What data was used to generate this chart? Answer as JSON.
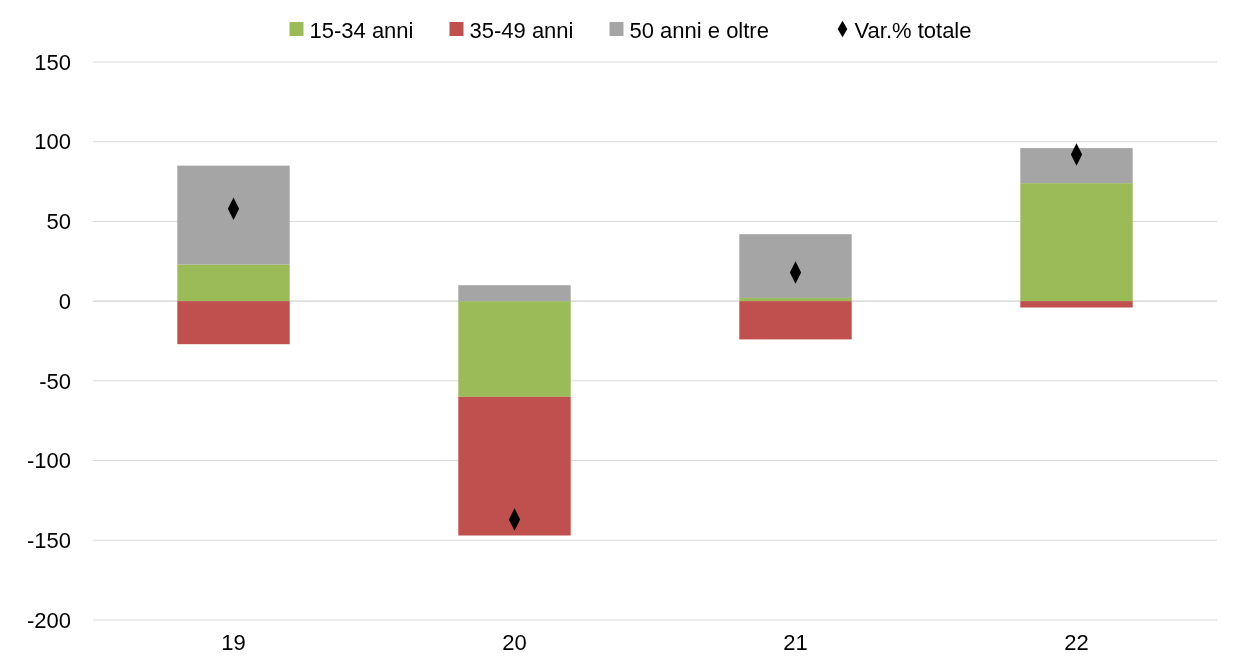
{
  "chart_data": {
    "type": "bar",
    "stacked": true,
    "categories": [
      "19",
      "20",
      "21",
      "22"
    ],
    "series": [
      {
        "name": "15-34 anni",
        "color": "#9bbb59",
        "values": [
          23,
          -60,
          2,
          74
        ]
      },
      {
        "name": "35-49 anni",
        "color": "#c0504d",
        "values": [
          -27,
          -87,
          -24,
          -4
        ]
      },
      {
        "name": "50 anni e oltre",
        "color": "#a5a5a5",
        "values": [
          62,
          10,
          40,
          22
        ]
      },
      {
        "name": "Var.% totale",
        "type": "scatter",
        "color": "#000000",
        "marker": "diamond",
        "values": [
          58,
          -137,
          18,
          92
        ]
      }
    ],
    "ylim": [
      -200,
      150
    ],
    "yticks": [
      -200,
      -150,
      -100,
      -50,
      0,
      50,
      100,
      150
    ],
    "grid": "y",
    "legend": "top"
  }
}
